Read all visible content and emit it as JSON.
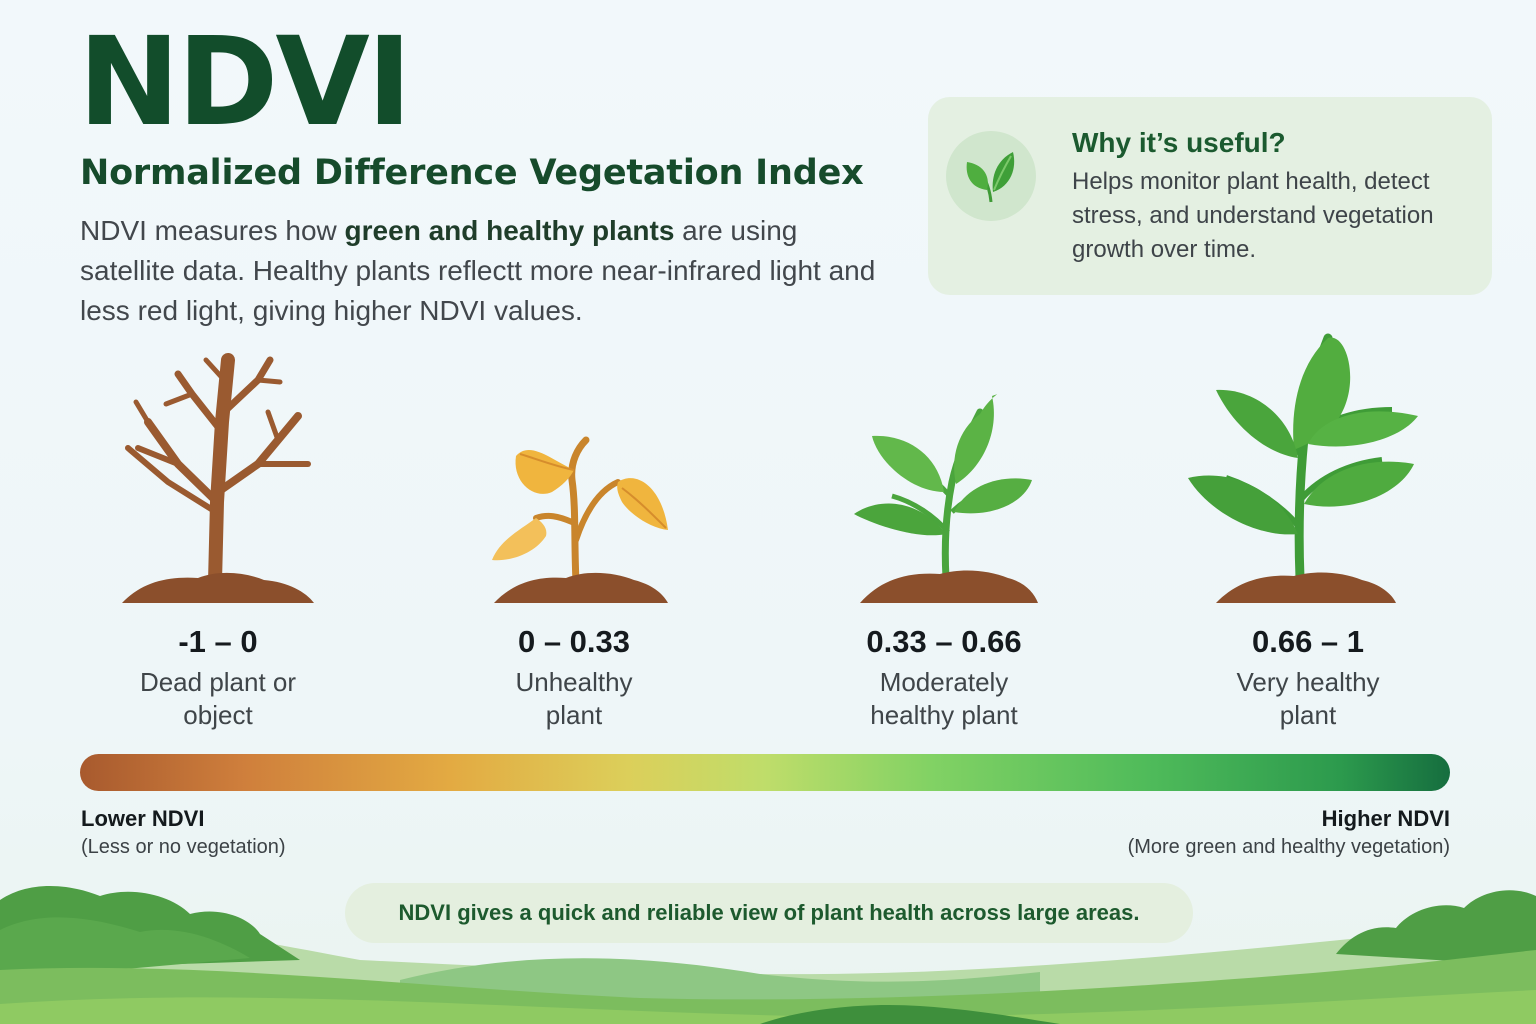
{
  "header": {
    "title": "NDVI",
    "subtitle": "Normalized Difference Vegetation Index",
    "description": {
      "before": "NDVI measures how ",
      "highlight": "green and healthy plants",
      "after": " are using satellite data. Healthy plants reflectt more near-infrared light and less red light, giving higher NDVI values."
    }
  },
  "info_card": {
    "icon": "leaf-icon",
    "title": "Why it’s useful?",
    "text": "Helps monitor plant health, detect stress, and understand vegetation growth over time."
  },
  "stages": [
    {
      "icon": "bare-tree-icon",
      "range": "-1 – 0",
      "label": "Dead plant or object"
    },
    {
      "icon": "wilted-sprout-icon",
      "range": "0 – 0.33",
      "label": "Unhealthy plant"
    },
    {
      "icon": "green-sprout-icon",
      "range": "0.33 – 0.66",
      "label": "Moderately healthy plant"
    },
    {
      "icon": "healthy-plant-icon",
      "range": "0.66 – 1",
      "label": "Very healthy plant"
    }
  ],
  "scale": {
    "low_label": "Lower NDVI",
    "low_note": "(Less or no vegetation)",
    "high_label": "Higher NDVI",
    "high_note": "(More green and healthy vegetation)",
    "colors": [
      "#a85a2e",
      "#e3aa42",
      "#bfdd6a",
      "#4fbb5a",
      "#166e3f"
    ]
  },
  "footer": {
    "note": "NDVI gives a quick and reliable view of plant health across large areas."
  },
  "colors": {
    "title": "#124d2b",
    "soil": "#8b4f2c",
    "trunk": "#9a5a30",
    "wilted_leaf": "#f0b53e",
    "leaf": "#4aa53d"
  }
}
